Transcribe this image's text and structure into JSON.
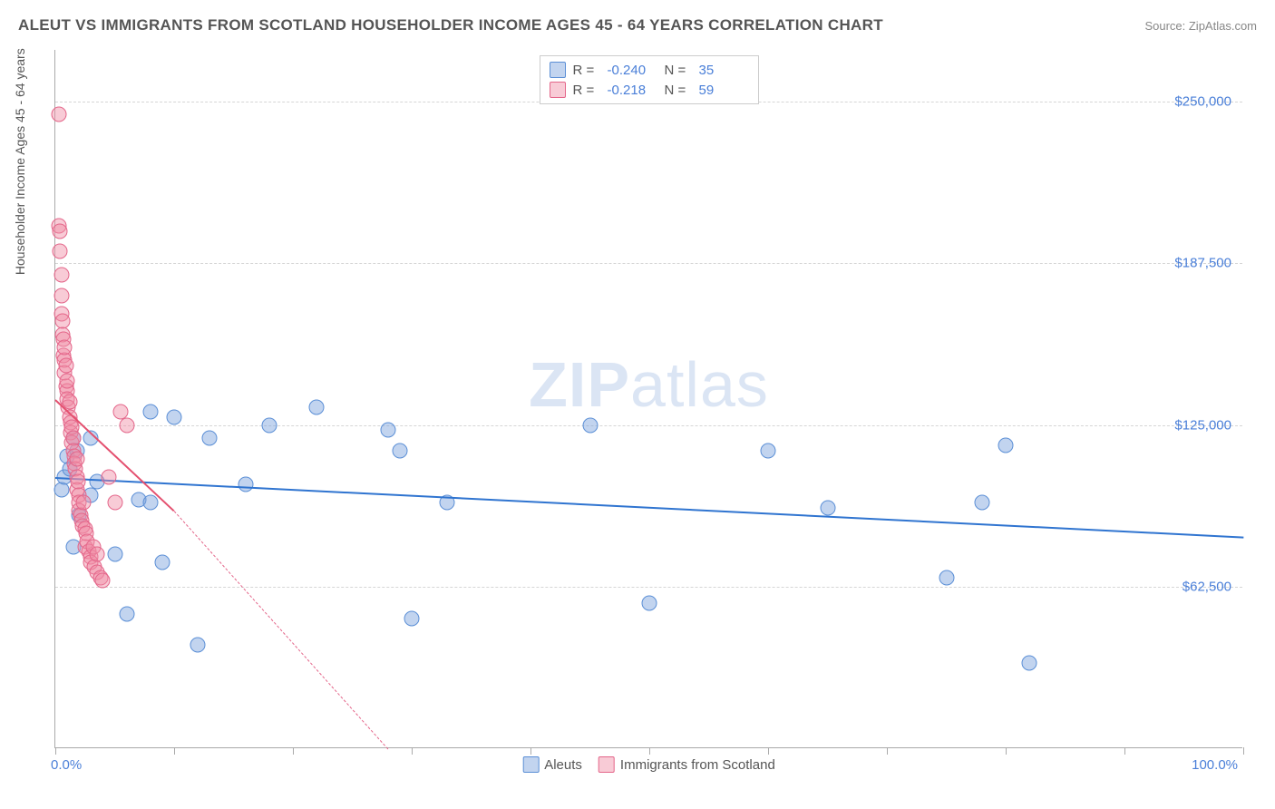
{
  "header": {
    "title": "ALEUT VS IMMIGRANTS FROM SCOTLAND HOUSEHOLDER INCOME AGES 45 - 64 YEARS CORRELATION CHART",
    "source": "Source: ZipAtlas.com"
  },
  "chart": {
    "type": "scatter",
    "ylabel": "Householder Income Ages 45 - 64 years",
    "xlim": [
      0,
      100
    ],
    "ylim": [
      0,
      270000
    ],
    "xticks": [
      0,
      10,
      20,
      30,
      40,
      50,
      60,
      70,
      80,
      90,
      100
    ],
    "xtick_labels": {
      "0": "0.0%",
      "100": "100.0%"
    },
    "yticks": [
      62500,
      125000,
      187500,
      250000
    ],
    "ytick_labels": [
      "$62,500",
      "$125,000",
      "$187,500",
      "$250,000"
    ],
    "background_color": "#ffffff",
    "grid_color": "#d5d5d5",
    "axis_color": "#aaaaaa",
    "label_color": "#4a7fd8",
    "watermark": "ZIPatlas",
    "series": [
      {
        "name": "Aleuts",
        "fill": "rgba(120,160,220,0.45)",
        "stroke": "#5b8fd6",
        "trend_color": "#2f74d0",
        "trend": {
          "x1": 0,
          "y1": 105000,
          "x2": 100,
          "y2": 82000
        },
        "R": "-0.240",
        "N": "35",
        "points": [
          [
            0.5,
            100000
          ],
          [
            0.8,
            105000
          ],
          [
            1.0,
            113000
          ],
          [
            1.2,
            108000
          ],
          [
            1.5,
            78000
          ],
          [
            1.5,
            120000
          ],
          [
            1.8,
            115000
          ],
          [
            2,
            90000
          ],
          [
            3,
            98000
          ],
          [
            3,
            120000
          ],
          [
            3.5,
            103000
          ],
          [
            5,
            75000
          ],
          [
            6,
            52000
          ],
          [
            7,
            96000
          ],
          [
            8,
            130000
          ],
          [
            8,
            95000
          ],
          [
            9,
            72000
          ],
          [
            10,
            128000
          ],
          [
            12,
            40000
          ],
          [
            13,
            120000
          ],
          [
            16,
            102000
          ],
          [
            18,
            125000
          ],
          [
            22,
            132000
          ],
          [
            28,
            123000
          ],
          [
            29,
            115000
          ],
          [
            30,
            50000
          ],
          [
            33,
            95000
          ],
          [
            45,
            125000
          ],
          [
            50,
            56000
          ],
          [
            60,
            115000
          ],
          [
            65,
            93000
          ],
          [
            75,
            66000
          ],
          [
            78,
            95000
          ],
          [
            80,
            117000
          ],
          [
            82,
            33000
          ]
        ]
      },
      {
        "name": "Immigrants from Scotland",
        "fill": "rgba(240,140,165,0.45)",
        "stroke": "#e4668a",
        "trend_color": "#e4506f",
        "trend": {
          "x1": 0,
          "y1": 135000,
          "x2": 10,
          "y2": 92000
        },
        "trend_ext": {
          "x1": 10,
          "y1": 92000,
          "x2": 28,
          "y2": 0
        },
        "R": "-0.218",
        "N": "59",
        "points": [
          [
            0.3,
            245000
          ],
          [
            0.3,
            202000
          ],
          [
            0.4,
            200000
          ],
          [
            0.4,
            192000
          ],
          [
            0.5,
            183000
          ],
          [
            0.5,
            175000
          ],
          [
            0.5,
            168000
          ],
          [
            0.6,
            165000
          ],
          [
            0.6,
            160000
          ],
          [
            0.7,
            158000
          ],
          [
            0.7,
            152000
          ],
          [
            0.8,
            150000
          ],
          [
            0.8,
            155000
          ],
          [
            0.8,
            145000
          ],
          [
            0.9,
            148000
          ],
          [
            0.9,
            140000
          ],
          [
            1.0,
            138000
          ],
          [
            1.0,
            142000
          ],
          [
            1.0,
            135000
          ],
          [
            1.1,
            132000
          ],
          [
            1.2,
            128000
          ],
          [
            1.2,
            134000
          ],
          [
            1.3,
            126000
          ],
          [
            1.3,
            122000
          ],
          [
            1.4,
            124000
          ],
          [
            1.4,
            118000
          ],
          [
            1.5,
            120000
          ],
          [
            1.5,
            115000
          ],
          [
            1.6,
            113000
          ],
          [
            1.6,
            110000
          ],
          [
            1.7,
            108000
          ],
          [
            1.8,
            112000
          ],
          [
            1.8,
            105000
          ],
          [
            1.8,
            100000
          ],
          [
            1.9,
            103000
          ],
          [
            2.0,
            98000
          ],
          [
            2.0,
            95000
          ],
          [
            2.0,
            92000
          ],
          [
            2.1,
            90000
          ],
          [
            2.2,
            88000
          ],
          [
            2.3,
            86000
          ],
          [
            2.4,
            95000
          ],
          [
            2.5,
            85000
          ],
          [
            2.5,
            78000
          ],
          [
            2.6,
            83000
          ],
          [
            2.7,
            80000
          ],
          [
            2.8,
            76000
          ],
          [
            3.0,
            74000
          ],
          [
            3.0,
            72000
          ],
          [
            3.2,
            78000
          ],
          [
            3.3,
            70000
          ],
          [
            3.5,
            68000
          ],
          [
            3.5,
            75000
          ],
          [
            3.8,
            66000
          ],
          [
            4.0,
            65000
          ],
          [
            4.5,
            105000
          ],
          [
            5.0,
            95000
          ],
          [
            5.5,
            130000
          ],
          [
            6.0,
            125000
          ]
        ]
      }
    ],
    "legend_top_labels": {
      "R": "R =",
      "N": "N ="
    }
  }
}
